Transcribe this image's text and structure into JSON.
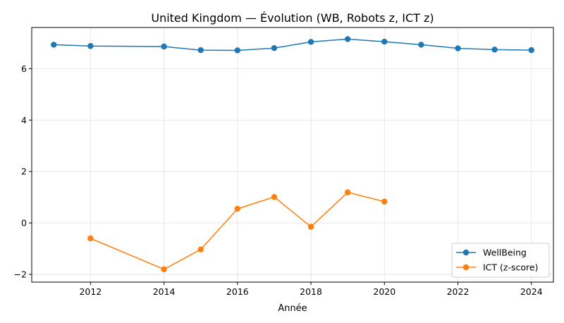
{
  "chart_data": {
    "type": "line",
    "title": "United Kingdom — Évolution (WB, Robots z, ICT z)",
    "xlabel": "Année",
    "ylabel": "",
    "xlim": [
      2010.4,
      2024.6
    ],
    "ylim": [
      -2.3,
      7.6
    ],
    "xticks": [
      2012,
      2014,
      2016,
      2018,
      2020,
      2022,
      2024
    ],
    "yticks": [
      -2,
      0,
      2,
      4,
      6
    ],
    "grid": true,
    "legend": "lower-right",
    "series": [
      {
        "name": "WellBeing",
        "color": "#1f77b4",
        "x": [
          2011,
          2012,
          2014,
          2015,
          2016,
          2017,
          2018,
          2019,
          2020,
          2021,
          2022,
          2023,
          2024
        ],
        "y": [
          6.93,
          6.88,
          6.86,
          6.72,
          6.71,
          6.8,
          7.04,
          7.15,
          7.05,
          6.93,
          6.79,
          6.74,
          6.72
        ]
      },
      {
        "name": "ICT (z-score)",
        "color": "#ff7f0e",
        "x": [
          2012,
          2014,
          2015,
          2016,
          2017,
          2018,
          2019,
          2020
        ],
        "y": [
          -0.6,
          -1.8,
          -1.03,
          0.55,
          1.01,
          -0.15,
          1.19,
          0.83
        ]
      }
    ]
  }
}
